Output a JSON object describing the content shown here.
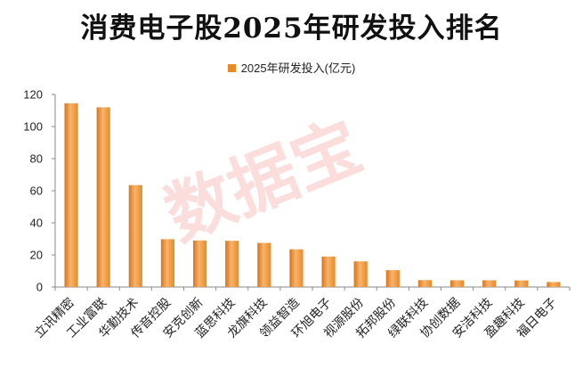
{
  "chart_data": {
    "type": "bar",
    "title": "消费电子股2025年研发投入排名",
    "legend": "2025年研发投入(亿元)",
    "series_name": "2025年研发投入(亿元)",
    "categories": [
      "立讯精密",
      "工业富联",
      "华勤技术",
      "传音控股",
      "安克创新",
      "蓝思科技",
      "龙旗科技",
      "领益智造",
      "环旭电子",
      "视源股份",
      "拓邦股份",
      "绿联科技",
      "协创数据",
      "安洁科技",
      "盈趣科技",
      "福日电子"
    ],
    "values": [
      114.5,
      112,
      63.5,
      29.8,
      29,
      28.8,
      27.5,
      23.5,
      19,
      16,
      10.5,
      4.3,
      4.2,
      4.2,
      4.1,
      3.1
    ],
    "ylim": [
      0,
      120
    ],
    "yticks": [
      "0",
      "20",
      "40",
      "60",
      "80",
      "100",
      "120"
    ],
    "xlabel": "",
    "ylabel": "",
    "grid": false,
    "legend_position": "top",
    "bar_color": "#e8892a",
    "bar_color_light": "#f7b46a",
    "bar_color_dark": "#d9741a"
  },
  "watermark": "数据宝"
}
